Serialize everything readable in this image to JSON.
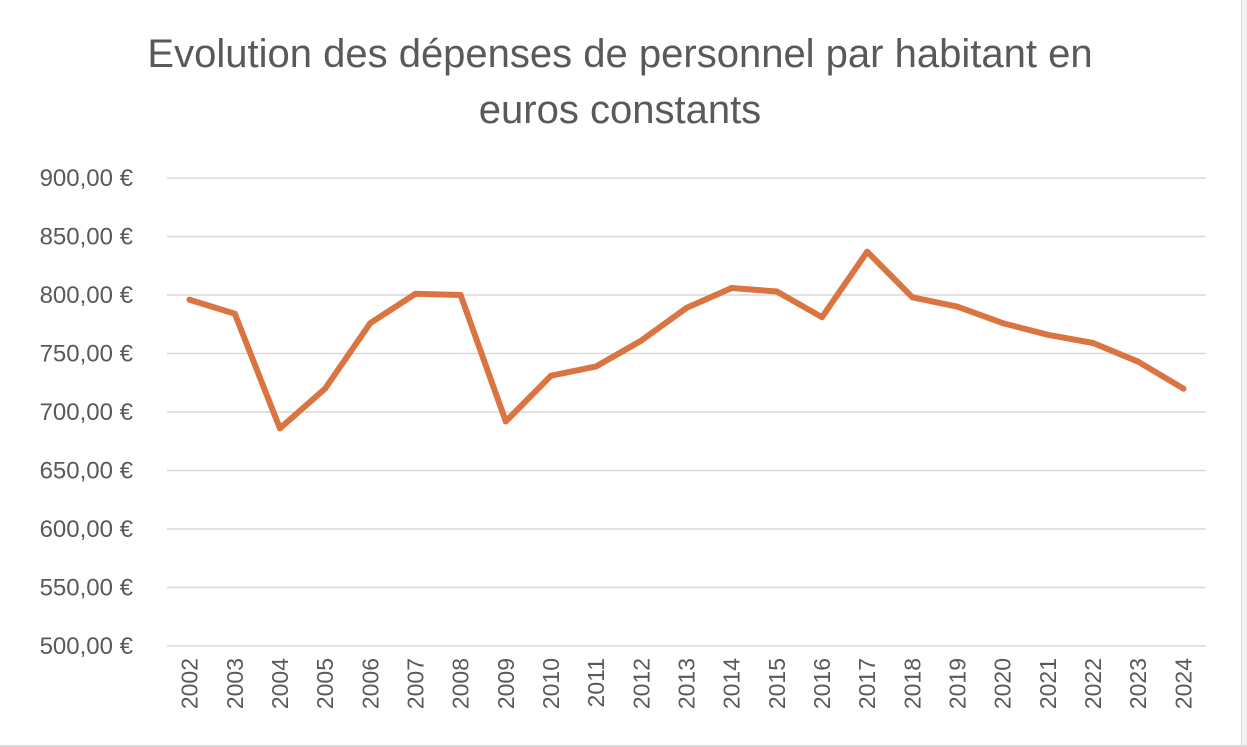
{
  "chart_data": {
    "type": "line",
    "title_lines": [
      "Evolution des dépenses de personnel par habitant en",
      "euros constants"
    ],
    "x": [
      "2002",
      "2003",
      "2004",
      "2005",
      "2006",
      "2007",
      "2008",
      "2009",
      "2010",
      "2011",
      "2012",
      "2013",
      "2014",
      "2015",
      "2016",
      "2017",
      "2018",
      "2019",
      "2020",
      "2021",
      "2022",
      "2023",
      "2024"
    ],
    "series": [
      {
        "values": [
          796,
          784,
          686,
          720,
          776,
          801,
          800,
          692,
          731,
          739,
          761,
          789,
          806,
          803,
          781,
          837,
          798,
          790,
          776,
          766,
          759,
          743,
          720
        ],
        "color": "#DA7440"
      }
    ],
    "yticks": [
      "500,00 €",
      "550,00 €",
      "600,00 €",
      "650,00 €",
      "700,00 €",
      "750,00 €",
      "800,00 €",
      "850,00 €",
      "900,00 €"
    ],
    "ylim": [
      500,
      900
    ],
    "grid": true,
    "legend": "none"
  }
}
